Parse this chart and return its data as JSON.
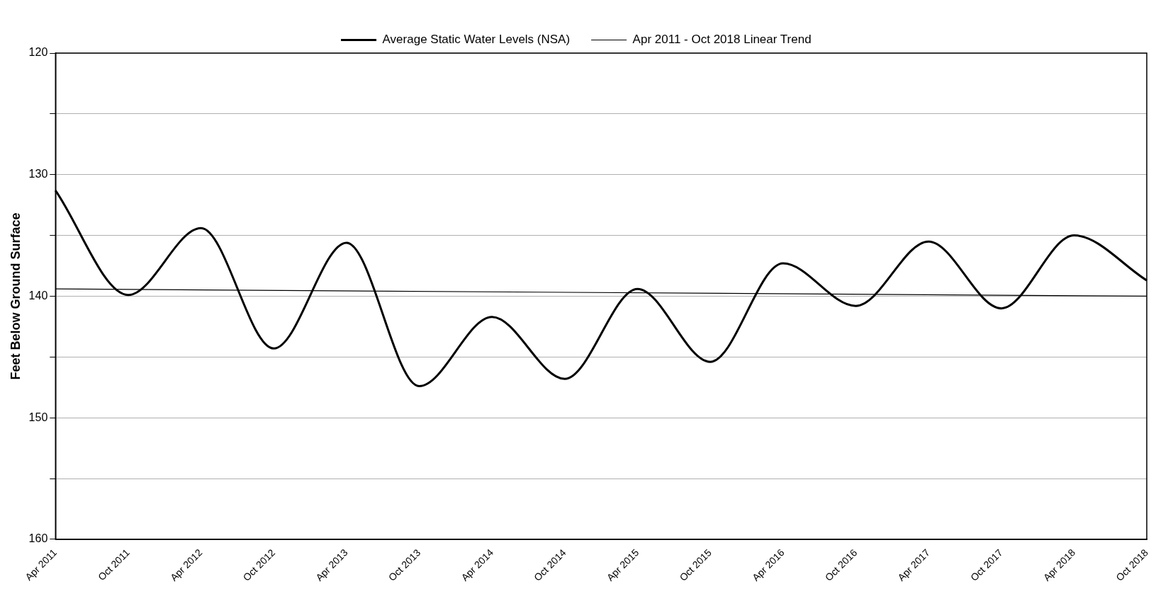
{
  "chart_data": {
    "type": "line",
    "ylabel": "Feet Below Ground Surface",
    "categories": [
      "Apr 2011",
      "Oct 2011",
      "Apr 2012",
      "Oct 2012",
      "Apr 2013",
      "Oct 2013",
      "Apr 2014",
      "Oct 2014",
      "Apr 2015",
      "Oct 2015",
      "Apr 2016",
      "Oct 2016",
      "Apr 2017",
      "Oct 2017",
      "Apr 2018",
      "Oct 2018"
    ],
    "series": [
      {
        "name": "Average Static Water Levels (NSA)",
        "color": "#000000",
        "values": [
          131.3,
          139.9,
          134.4,
          144.3,
          135.6,
          147.4,
          141.7,
          146.8,
          139.4,
          145.4,
          137.3,
          140.8,
          135.5,
          141.0,
          135.0,
          138.7
        ]
      },
      {
        "name": "Apr 2011 - Oct 2018 Linear Trend",
        "color": "#000000",
        "x": [
          "Apr 2011",
          "Oct 2018"
        ],
        "values": [
          139.4,
          140.0
        ]
      }
    ],
    "ylim": [
      160,
      120
    ],
    "yticks": [
      120,
      {
        "value": 125,
        "label": null
      },
      130,
      {
        "value": 135,
        "label": null
      },
      140,
      {
        "value": 145,
        "label": null
      },
      150,
      {
        "value": 155,
        "label": null
      },
      160
    ],
    "grid": "y",
    "legend": "top",
    "marker": "none",
    "line_style": "solid"
  }
}
